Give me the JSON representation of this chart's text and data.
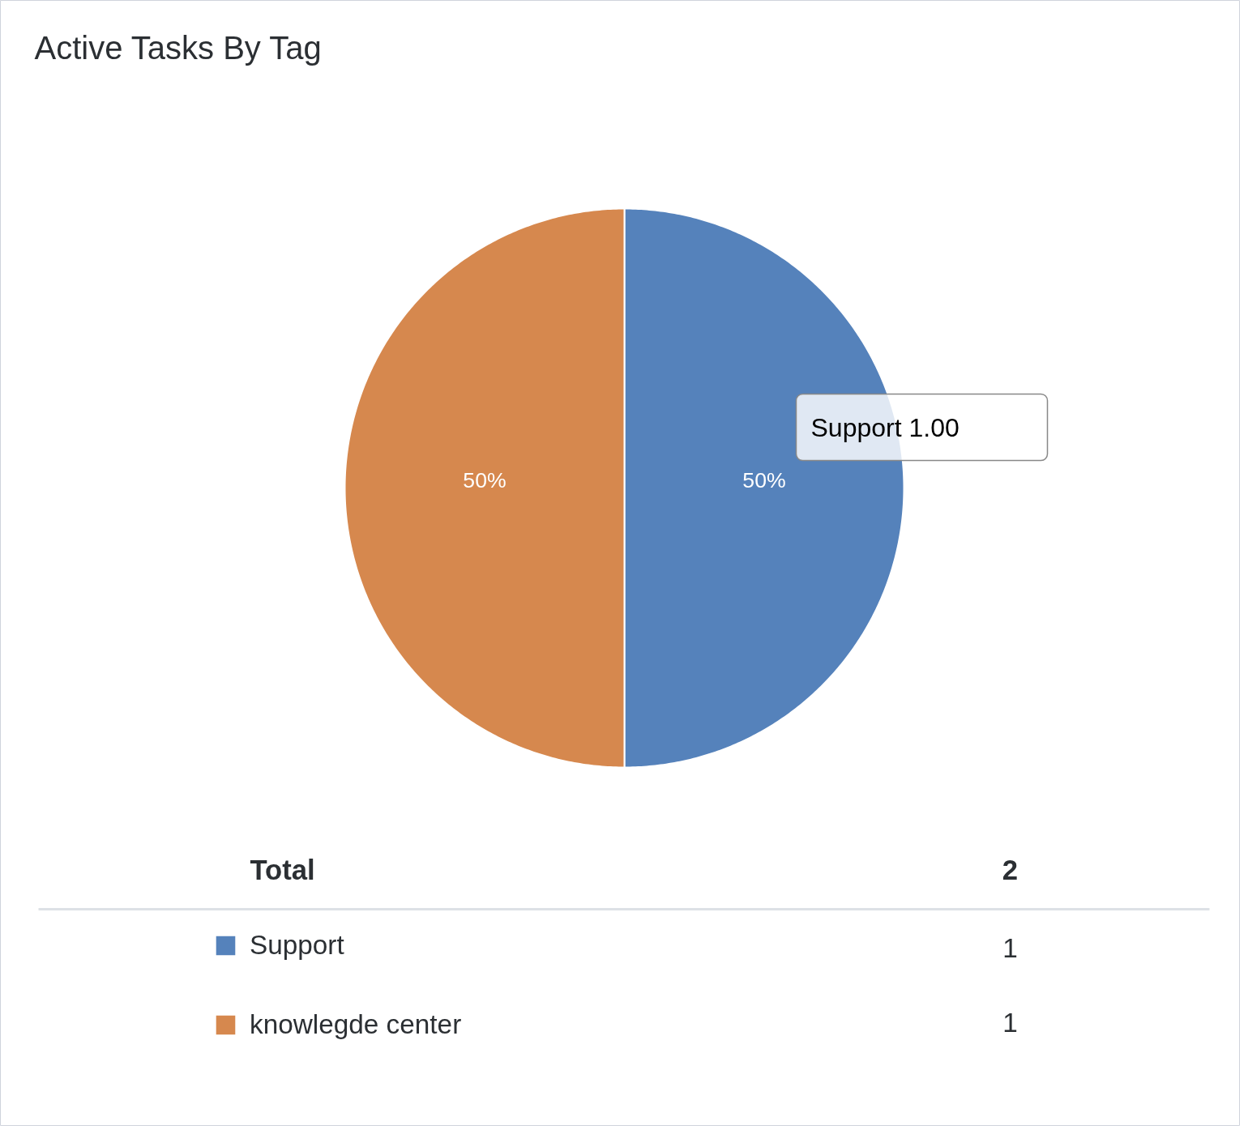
{
  "chart_data": {
    "type": "pie",
    "title": "Active Tasks By Tag",
    "categories": [
      "Support",
      "knowlegde center"
    ],
    "values": [
      50,
      50
    ],
    "colors": [
      "#5582bb",
      "#d6884e"
    ],
    "value_labels": [
      "50%",
      "50%"
    ],
    "legend": "bottom",
    "annotations": [
      "Total",
      "2",
      "1",
      "1",
      "Support 1.00"
    ]
  }
}
